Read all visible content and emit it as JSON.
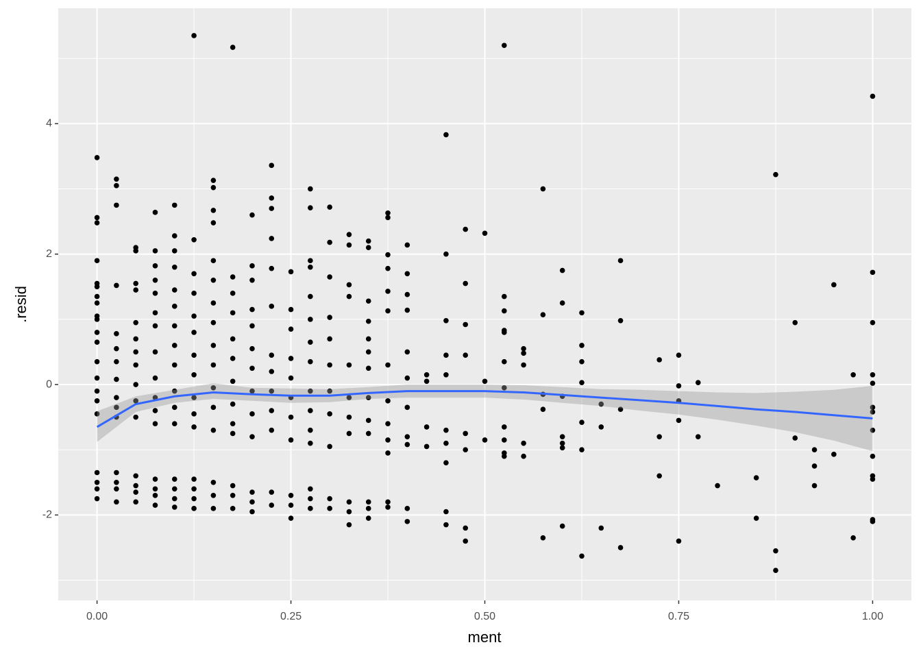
{
  "chart_data": {
    "type": "scatter",
    "x_label": "ment",
    "y_label": ".resid",
    "xlim": [
      -0.05,
      1.05
    ],
    "ylim": [
      -3.31,
      5.77
    ],
    "xticks": [
      {
        "value": 0,
        "label": "0.00"
      },
      {
        "value": 0.25,
        "label": "0.25"
      },
      {
        "value": 0.5,
        "label": "0.50"
      },
      {
        "value": 0.75,
        "label": "0.75"
      },
      {
        "value": 1,
        "label": "1.00"
      }
    ],
    "yticks": [
      -2,
      0,
      2,
      4
    ],
    "xminorticks": [
      0.125,
      0.375,
      0.625,
      0.875
    ],
    "yminorticks": [
      -3,
      -1,
      1,
      3,
      5
    ],
    "grid": true,
    "color": "#000000",
    "x": [
      0,
      0,
      0,
      0,
      0,
      0,
      0,
      0,
      0,
      0,
      0,
      0,
      0,
      0,
      0,
      0,
      0,
      0,
      0,
      0,
      0,
      0.025,
      0.025,
      0.025,
      0.025,
      0.025,
      0.025,
      0.025,
      0.025,
      0.025,
      0.025,
      0.025,
      0.025,
      0.025,
      0.025,
      0.025,
      0.05,
      0.05,
      0.05,
      0.05,
      0.05,
      0.05,
      0.05,
      0.05,
      0.05,
      0.05,
      0.05,
      0.05,
      0.05,
      0.05,
      0.05,
      0.075,
      0.075,
      0.075,
      0.075,
      0.075,
      0.075,
      0.075,
      0.075,
      0.075,
      0.075,
      0.075,
      0.075,
      0.075,
      0.075,
      0.075,
      0.075,
      0.1,
      0.1,
      0.1,
      0.1,
      0.1,
      0.1,
      0.1,
      0.1,
      0.1,
      0.1,
      0.1,
      0.1,
      0.1,
      0.1,
      0.1,
      0.1,
      0.125,
      0.125,
      0.125,
      0.125,
      0.125,
      0.125,
      0.125,
      0.125,
      0.125,
      0.125,
      0.125,
      0.125,
      0.125,
      0.125,
      0.125,
      0.15,
      0.15,
      0.15,
      0.15,
      0.15,
      0.15,
      0.15,
      0.15,
      0.15,
      0.15,
      0.15,
      0.15,
      0.15,
      0.15,
      0.15,
      0.15,
      0.175,
      0.175,
      0.175,
      0.175,
      0.175,
      0.175,
      0.175,
      0.175,
      0.175,
      0.175,
      0.175,
      0.175,
      0.175,
      0.2,
      0.2,
      0.2,
      0.2,
      0.2,
      0.2,
      0.2,
      0.2,
      0.2,
      0.2,
      0.2,
      0.2,
      0.2,
      0.225,
      0.225,
      0.225,
      0.225,
      0.225,
      0.225,
      0.225,
      0.225,
      0.225,
      0.225,
      0.225,
      0.225,
      0.225,
      0.25,
      0.25,
      0.25,
      0.25,
      0.25,
      0.25,
      0.25,
      0.25,
      0.25,
      0.25,
      0.25,
      0.275,
      0.275,
      0.275,
      0.275,
      0.275,
      0.275,
      0.275,
      0.275,
      0.275,
      0.275,
      0.275,
      0.275,
      0.275,
      0.275,
      0.275,
      0.3,
      0.3,
      0.3,
      0.3,
      0.3,
      0.3,
      0.3,
      0.3,
      0.3,
      0.3,
      0.3,
      0.325,
      0.325,
      0.325,
      0.325,
      0.325,
      0.325,
      0.325,
      0.325,
      0.325,
      0.325,
      0.325,
      0.35,
      0.35,
      0.35,
      0.35,
      0.35,
      0.35,
      0.35,
      0.35,
      0.35,
      0.35,
      0.35,
      0.35,
      0.35,
      0.375,
      0.375,
      0.375,
      0.375,
      0.375,
      0.375,
      0.375,
      0.375,
      0.375,
      0.375,
      0.375,
      0.375,
      0.375,
      0.4,
      0.4,
      0.4,
      0.4,
      0.4,
      0.4,
      0.4,
      0.4,
      0.4,
      0.4,
      0.4,
      0.425,
      0.425,
      0.425,
      0.425,
      0.45,
      0.45,
      0.45,
      0.45,
      0.45,
      0.45,
      0.45,
      0.45,
      0.45,
      0.45,
      0.475,
      0.475,
      0.475,
      0.475,
      0.475,
      0.475,
      0.475,
      0.475,
      0.5,
      0.5,
      0.5,
      0.525,
      0.525,
      0.525,
      0.525,
      0.525,
      0.525,
      0.525,
      0.525,
      0.525,
      0.525,
      0.525,
      0.55,
      0.55,
      0.55,
      0.55,
      0.55,
      0.575,
      0.575,
      0.575,
      0.575,
      0.575,
      0.6,
      0.6,
      0.6,
      0.6,
      0.6,
      0.6,
      0.6,
      0.625,
      0.625,
      0.625,
      0.625,
      0.625,
      0.625,
      0.625,
      0.65,
      0.65,
      0.65,
      0.675,
      0.675,
      0.675,
      0.675,
      0.725,
      0.725,
      0.725,
      0.75,
      0.75,
      0.75,
      0.75,
      0.75,
      0.775,
      0.775,
      0.8,
      0.85,
      0.85,
      0.875,
      0.875,
      0.875,
      0.9,
      0.9,
      0.925,
      0.925,
      0.925,
      0.95,
      0.95,
      0.975,
      0.975,
      1,
      1,
      1,
      1,
      1,
      1,
      1,
      1,
      1,
      1,
      1,
      1,
      1
    ],
    "y": [
      3.48,
      2.56,
      2.48,
      1.9,
      1.55,
      1.5,
      1.35,
      1.25,
      1.05,
      1.0,
      0.8,
      0.65,
      0.35,
      0.1,
      -0.1,
      -0.25,
      -0.45,
      -1.35,
      -1.5,
      -1.6,
      -1.75,
      3.15,
      3.05,
      2.75,
      1.52,
      0.78,
      0.55,
      0.35,
      0.08,
      -0.2,
      -0.35,
      -0.5,
      -1.35,
      -1.5,
      -1.6,
      -1.8,
      2.1,
      2.05,
      1.55,
      1.45,
      0.95,
      0.7,
      0.5,
      0.3,
      0.0,
      -0.25,
      -0.5,
      -1.4,
      -1.55,
      -1.65,
      -1.8,
      2.64,
      2.05,
      1.82,
      1.6,
      1.4,
      1.1,
      0.9,
      0.5,
      0.1,
      -0.2,
      -0.4,
      -0.6,
      -1.45,
      -1.6,
      -1.7,
      -1.85,
      2.75,
      2.28,
      2.05,
      1.8,
      1.45,
      1.2,
      0.9,
      0.6,
      0.3,
      -0.1,
      -0.35,
      -0.6,
      -1.45,
      -1.6,
      -1.75,
      -1.88,
      5.35,
      2.22,
      1.7,
      1.4,
      1.05,
      0.8,
      0.45,
      0.15,
      -0.2,
      -0.45,
      -0.65,
      -1.45,
      -1.6,
      -1.75,
      -1.9,
      3.13,
      3.02,
      2.67,
      2.48,
      1.9,
      1.6,
      1.25,
      0.95,
      0.6,
      0.3,
      -0.05,
      -0.35,
      -0.7,
      -1.5,
      -1.7,
      -1.9,
      5.17,
      1.65,
      1.4,
      1.1,
      0.7,
      0.4,
      0.05,
      -0.3,
      -0.6,
      -0.75,
      -1.55,
      -1.7,
      -1.9,
      2.6,
      1.82,
      1.6,
      1.15,
      0.9,
      0.55,
      0.25,
      -0.1,
      -0.45,
      -0.8,
      -1.65,
      -1.8,
      -1.95,
      3.36,
      2.86,
      2.7,
      2.24,
      1.78,
      1.2,
      0.45,
      0.2,
      -0.1,
      -0.4,
      -0.7,
      -1.65,
      -1.85,
      1.73,
      1.15,
      0.85,
      0.4,
      0.1,
      -0.2,
      -0.5,
      -0.85,
      -1.7,
      -1.85,
      -2.05,
      3.0,
      2.71,
      1.9,
      1.8,
      1.35,
      1.0,
      0.65,
      0.35,
      -0.1,
      -0.4,
      -0.7,
      -0.9,
      -1.6,
      -1.75,
      -1.9,
      2.72,
      2.18,
      1.65,
      1.03,
      0.7,
      0.3,
      -0.1,
      -0.45,
      -0.95,
      -1.75,
      -1.9,
      2.3,
      2.14,
      1.53,
      1.35,
      0.3,
      -0.2,
      -0.5,
      -0.75,
      -1.8,
      -1.95,
      -2.15,
      2.2,
      2.1,
      1.28,
      0.97,
      0.7,
      0.5,
      0.25,
      -0.2,
      -0.55,
      -0.75,
      -1.8,
      -1.9,
      -2.05,
      2.63,
      2.56,
      1.99,
      1.78,
      1.43,
      1.13,
      0.3,
      -0.25,
      -0.6,
      -0.85,
      -1.05,
      -1.8,
      -1.88,
      2.14,
      1.7,
      1.38,
      1.14,
      0.5,
      0.1,
      -0.35,
      -0.8,
      -0.92,
      -1.9,
      -2.1,
      0.15,
      0.05,
      -0.65,
      -0.95,
      3.83,
      2.0,
      0.98,
      0.45,
      0.15,
      -0.7,
      -0.9,
      -1.2,
      -1.95,
      -2.15,
      2.38,
      1.55,
      0.92,
      0.45,
      -0.75,
      -1.0,
      -2.2,
      -2.4,
      2.32,
      0.05,
      -0.85,
      5.2,
      1.35,
      1.13,
      0.83,
      0.8,
      0.35,
      -0.05,
      -0.65,
      -0.85,
      -1.05,
      -1.1,
      0.55,
      0.48,
      0.3,
      -0.9,
      -1.1,
      3.0,
      1.07,
      -0.15,
      -0.38,
      -2.35,
      1.75,
      1.25,
      -0.18,
      -0.8,
      -0.9,
      -0.97,
      -2.17,
      1.1,
      0.6,
      0.35,
      0.03,
      -0.58,
      -1.0,
      -2.63,
      -0.3,
      -0.65,
      -2.2,
      1.9,
      0.98,
      -0.38,
      -2.5,
      0.38,
      -0.8,
      -1.4,
      0.45,
      -0.02,
      -0.25,
      -0.55,
      -2.4,
      0.03,
      -0.8,
      -1.55,
      -1.43,
      -2.05,
      3.22,
      -2.55,
      -2.85,
      0.95,
      -0.82,
      -1.0,
      -1.25,
      -1.55,
      1.53,
      -1.07,
      0.15,
      -2.35,
      4.42,
      1.72,
      0.95,
      0.15,
      0.02,
      -0.35,
      -0.42,
      -0.7,
      -1.1,
      -1.4,
      -1.45,
      -2.07,
      -2.1
    ],
    "smooth": {
      "color": "#3366ff",
      "band_color": "#999999",
      "x": [
        0,
        0.05,
        0.1,
        0.15,
        0.2,
        0.25,
        0.3,
        0.35,
        0.4,
        0.45,
        0.5,
        0.55,
        0.6,
        0.65,
        0.7,
        0.75,
        0.8,
        0.85,
        0.9,
        0.95,
        1
      ],
      "y": [
        -0.65,
        -0.3,
        -0.18,
        -0.12,
        -0.15,
        -0.17,
        -0.17,
        -0.13,
        -0.1,
        -0.1,
        -0.1,
        -0.12,
        -0.16,
        -0.2,
        -0.24,
        -0.28,
        -0.33,
        -0.38,
        -0.42,
        -0.47,
        -0.52
      ],
      "ymin": [
        -0.88,
        -0.42,
        -0.28,
        -0.22,
        -0.25,
        -0.28,
        -0.27,
        -0.22,
        -0.2,
        -0.2,
        -0.2,
        -0.23,
        -0.28,
        -0.33,
        -0.4,
        -0.46,
        -0.54,
        -0.63,
        -0.73,
        -0.86,
        -1.02
      ],
      "ymax": [
        -0.41,
        -0.18,
        -0.08,
        0.02,
        -0.05,
        -0.06,
        -0.07,
        -0.04,
        0.0,
        0.0,
        0.0,
        -0.01,
        -0.04,
        -0.07,
        -0.08,
        -0.1,
        -0.12,
        -0.13,
        -0.11,
        -0.08,
        -0.02
      ]
    }
  }
}
